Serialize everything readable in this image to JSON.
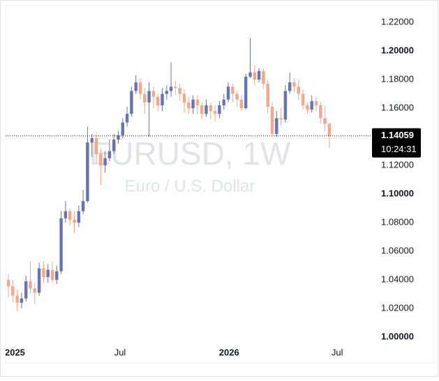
{
  "chart_data": {
    "type": "candlestick",
    "watermark": "EURUSD, 1W",
    "watermark_subtitle": "Euro / U.S. Dollar",
    "up_color": "#6673b5",
    "down_color": "#f6a785",
    "ylim": [
      0.9971,
      1.2317
    ],
    "yticks": [
      {
        "value": 1.0,
        "label": "1.00000",
        "bold": true
      },
      {
        "value": 1.02,
        "label": "1.02000"
      },
      {
        "value": 1.04,
        "label": "1.04000"
      },
      {
        "value": 1.06,
        "label": "1.06000"
      },
      {
        "value": 1.08,
        "label": "1.08000"
      },
      {
        "value": 1.1,
        "label": "1.10000",
        "bold": true
      },
      {
        "value": 1.12,
        "label": "1.12000"
      },
      {
        "value": 1.14,
        "label": "1.14000"
      },
      {
        "value": 1.16,
        "label": "1.16000"
      },
      {
        "value": 1.18,
        "label": "1.18000"
      },
      {
        "value": 1.2,
        "label": "1.20000",
        "bold": true
      },
      {
        "value": 1.22,
        "label": "1.22000"
      }
    ],
    "xticks": [
      {
        "value": 1.5,
        "label": "2025",
        "bold": true
      },
      {
        "value": 25.4,
        "label": "Jul"
      },
      {
        "value": 50.2,
        "label": "2026",
        "bold": true
      },
      {
        "value": 74.8,
        "label": "Jul"
      }
    ],
    "last_price": 1.14059,
    "countdown": "10:24:31",
    "open": [
      1.04,
      1.0355,
      1.029,
      1.024,
      1.027,
      1.039,
      1.034,
      1.031,
      1.048,
      1.042,
      1.047,
      1.04,
      1.046,
      1.083,
      1.088,
      1.082,
      1.08,
      1.088,
      1.095,
      1.136,
      1.139,
      1.128,
      1.12,
      1.125,
      1.13,
      1.138,
      1.141,
      1.15,
      1.156,
      1.172,
      1.178,
      1.17,
      1.164,
      1.172,
      1.168,
      1.162,
      1.17,
      1.172,
      1.175,
      1.174,
      1.17,
      1.164,
      1.16,
      1.166,
      1.162,
      1.156,
      1.162,
      1.158,
      1.156,
      1.162,
      1.166,
      1.175,
      1.17,
      1.166,
      1.16,
      1.182,
      1.185,
      1.18,
      1.186,
      1.177,
      1.161,
      1.142,
      1.153,
      1.152,
      1.172,
      1.178,
      1.175,
      1.17,
      1.162,
      1.159,
      1.165,
      1.162,
      1.153,
      1.149
    ],
    "high": [
      1.044,
      1.04,
      1.033,
      1.031,
      1.043,
      1.053,
      1.038,
      1.052,
      1.053,
      1.051,
      1.053,
      1.05,
      1.088,
      1.095,
      1.09,
      1.088,
      1.092,
      1.103,
      1.147,
      1.142,
      1.143,
      1.132,
      1.13,
      1.138,
      1.142,
      1.144,
      1.153,
      1.161,
      1.175,
      1.183,
      1.181,
      1.174,
      1.178,
      1.175,
      1.17,
      1.174,
      1.176,
      1.192,
      1.179,
      1.177,
      1.173,
      1.168,
      1.169,
      1.169,
      1.164,
      1.166,
      1.164,
      1.162,
      1.165,
      1.17,
      1.178,
      1.177,
      1.172,
      1.169,
      1.184,
      1.209,
      1.19,
      1.188,
      1.188,
      1.18,
      1.164,
      1.158,
      1.16,
      1.176,
      1.185,
      1.181,
      1.18,
      1.173,
      1.164,
      1.169,
      1.168,
      1.164,
      1.162,
      1.15
    ],
    "low": [
      1.028,
      1.024,
      1.018,
      1.02,
      1.025,
      1.03,
      1.023,
      1.029,
      1.038,
      1.038,
      1.038,
      1.037,
      1.044,
      1.08,
      1.078,
      1.073,
      1.077,
      1.086,
      1.094,
      1.126,
      1.122,
      1.106,
      1.115,
      1.123,
      1.128,
      1.135,
      1.139,
      1.147,
      1.154,
      1.17,
      1.166,
      1.156,
      1.14,
      1.16,
      1.158,
      1.158,
      1.166,
      1.168,
      1.169,
      1.165,
      1.157,
      1.156,
      1.156,
      1.156,
      1.152,
      1.154,
      1.152,
      1.151,
      1.153,
      1.159,
      1.164,
      1.164,
      1.161,
      1.158,
      1.159,
      1.181,
      1.176,
      1.178,
      1.174,
      1.156,
      1.14,
      1.14,
      1.148,
      1.15,
      1.17,
      1.171,
      1.166,
      1.159,
      1.156,
      1.157,
      1.158,
      1.149,
      1.144,
      1.132
    ],
    "close": [
      1.0355,
      1.029,
      1.024,
      1.027,
      1.039,
      1.034,
      1.031,
      1.048,
      1.042,
      1.047,
      1.04,
      1.046,
      1.083,
      1.088,
      1.082,
      1.08,
      1.088,
      1.095,
      1.136,
      1.139,
      1.128,
      1.12,
      1.125,
      1.13,
      1.138,
      1.141,
      1.15,
      1.156,
      1.172,
      1.178,
      1.17,
      1.164,
      1.172,
      1.168,
      1.162,
      1.17,
      1.172,
      1.175,
      1.174,
      1.17,
      1.164,
      1.16,
      1.166,
      1.162,
      1.156,
      1.162,
      1.158,
      1.156,
      1.162,
      1.166,
      1.175,
      1.17,
      1.166,
      1.16,
      1.182,
      1.185,
      1.18,
      1.186,
      1.177,
      1.161,
      1.142,
      1.153,
      1.152,
      1.172,
      1.178,
      1.175,
      1.17,
      1.162,
      1.159,
      1.165,
      1.162,
      1.153,
      1.149,
      1.14059
    ]
  }
}
